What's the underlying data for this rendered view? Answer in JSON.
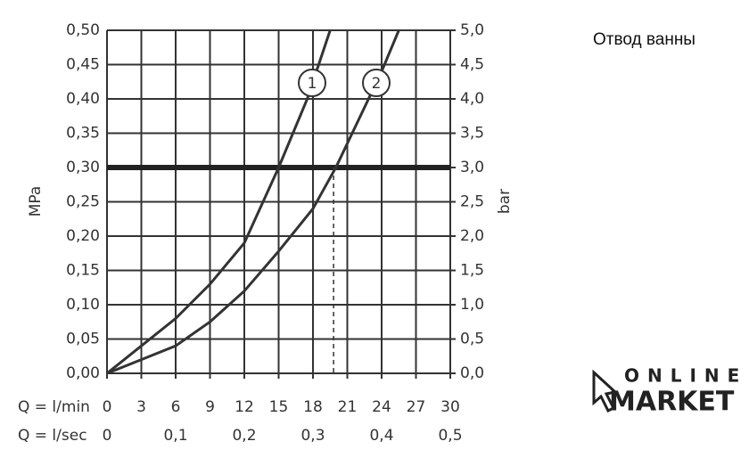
{
  "chart_data": {
    "type": "line",
    "title": "Отвод ванны",
    "ylabel": "MPa",
    "y2label": "bar",
    "xlabel": "Q = l/min",
    "x2label": "Q = l/sec",
    "xlim": [
      0,
      30
    ],
    "xticks": [
      0,
      3,
      6,
      9,
      12,
      15,
      18,
      21,
      24,
      27,
      30
    ],
    "x2lim": [
      0,
      0.5
    ],
    "x2ticks": [
      0,
      {
        "value": 0.1,
        "label": "0,1"
      },
      {
        "value": 0.2,
        "label": "0,2"
      },
      {
        "value": 0.3,
        "label": "0,3"
      },
      {
        "value": 0.4,
        "label": "0,4"
      },
      {
        "value": 0.5,
        "label": "0,5"
      }
    ],
    "ylim": [
      0,
      0.5
    ],
    "yticks": [
      {
        "value": 0,
        "label": "0,00"
      },
      {
        "value": 0.05,
        "label": "0,05"
      },
      {
        "value": 0.1,
        "label": "0,10"
      },
      {
        "value": 0.15,
        "label": "0,15"
      },
      {
        "value": 0.2,
        "label": "0,20"
      },
      {
        "value": 0.25,
        "label": "0,25"
      },
      {
        "value": 0.3,
        "label": "0,30"
      },
      {
        "value": 0.35,
        "label": "0,35"
      },
      {
        "value": 0.4,
        "label": "0,40"
      },
      {
        "value": 0.45,
        "label": "0,45"
      },
      {
        "value": 0.5,
        "label": "0,50"
      }
    ],
    "y2lim": [
      0,
      5
    ],
    "y2ticks": [
      {
        "value": 0,
        "label": "0,0"
      },
      {
        "value": 0.5,
        "label": "0,5"
      },
      {
        "value": 1,
        "label": "1,0"
      },
      {
        "value": 1.5,
        "label": "1,5"
      },
      {
        "value": 2,
        "label": "2,0"
      },
      {
        "value": 2.5,
        "label": "2,5"
      },
      {
        "value": 3,
        "label": "3,0"
      },
      {
        "value": 3.5,
        "label": "3,5"
      },
      {
        "value": 4,
        "label": "4,0"
      },
      {
        "value": 4.5,
        "label": "4,5"
      },
      {
        "value": 5,
        "label": "5,0"
      }
    ],
    "grid": true,
    "reference_y": 0.3,
    "drop_lines_x": [
      15,
      19.8
    ],
    "series": [
      {
        "name": "1",
        "color": "#333333",
        "x": [
          0,
          3,
          6,
          9,
          12,
          15,
          17.5,
          19.5
        ],
        "values": [
          0,
          0.04,
          0.08,
          0.13,
          0.19,
          0.3,
          0.4,
          0.5
        ]
      },
      {
        "name": "2",
        "color": "#333333",
        "x": [
          0,
          3,
          6,
          9,
          12,
          15,
          18,
          20,
          22,
          24,
          25.5
        ],
        "values": [
          0,
          0.02,
          0.04,
          0.075,
          0.12,
          0.178,
          0.24,
          0.3,
          0.37,
          0.44,
          0.5
        ]
      }
    ]
  },
  "logo": {
    "line1": "ONLINE",
    "line2": "MARKET"
  }
}
